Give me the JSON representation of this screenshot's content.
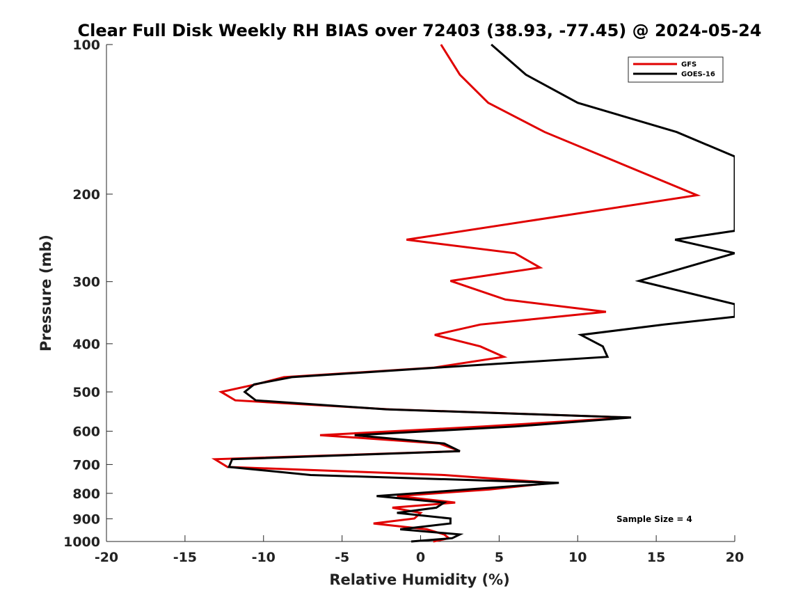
{
  "chart_data": {
    "type": "line",
    "title": "Clear Full Disk Weekly RH BIAS over 72403 (38.93, -77.45) @ 2024-05-24",
    "xlabel": "Relative Humidity (%)",
    "ylabel": "Pressure (mb)",
    "xlim": [
      -20,
      20
    ],
    "ylim": [
      100,
      1000
    ],
    "y_scale": "log",
    "y_reversed": true,
    "grid": false,
    "legend_position": "top-right",
    "x_ticks": [
      -20,
      -15,
      -10,
      -5,
      0,
      5,
      10,
      15,
      20
    ],
    "x_tick_labels": [
      "-20",
      "-15",
      "-10",
      "-5",
      "0",
      "5",
      "10",
      "15",
      "20"
    ],
    "y_ticks": [
      100,
      200,
      300,
      400,
      500,
      600,
      700,
      800,
      900,
      1000
    ],
    "y_tick_labels": [
      "100",
      "200",
      "300",
      "400",
      "500",
      "600",
      "700",
      "800",
      "900",
      "1000"
    ],
    "annotation": "Sample Size = 4",
    "series": [
      {
        "name": "GFS",
        "color": "#e00000",
        "points": [
          [
            1.3,
            100
          ],
          [
            2.5,
            115
          ],
          [
            4.3,
            131
          ],
          [
            7.9,
            150
          ],
          [
            17.6,
            201
          ],
          [
            -0.9,
            247
          ],
          [
            6.0,
            263
          ],
          [
            7.6,
            281
          ],
          [
            1.9,
            299
          ],
          [
            5.4,
            326
          ],
          [
            11.8,
            345
          ],
          [
            3.8,
            366
          ],
          [
            0.9,
            384
          ],
          [
            3.8,
            405
          ],
          [
            5.3,
            425
          ],
          [
            0.8,
            447
          ],
          [
            -8.7,
            467
          ],
          [
            -10.5,
            483
          ],
          [
            -12.7,
            500
          ],
          [
            -11.8,
            520
          ],
          [
            -2.0,
            542
          ],
          [
            13.3,
            563
          ],
          [
            4.0,
            587
          ],
          [
            -6.4,
            611
          ],
          [
            1.2,
            635
          ],
          [
            2.5,
            658
          ],
          [
            -13.1,
            683
          ],
          [
            -12.3,
            708
          ],
          [
            1.5,
            735
          ],
          [
            8.4,
            762
          ],
          [
            4.4,
            786
          ],
          [
            -1.5,
            810
          ],
          [
            2.2,
            835
          ],
          [
            -1.8,
            855
          ],
          [
            0.0,
            876
          ],
          [
            -0.4,
            899
          ],
          [
            -3.0,
            920
          ],
          [
            0.4,
            945
          ],
          [
            1.5,
            968
          ],
          [
            1.8,
            985
          ],
          [
            0.8,
            1000
          ]
        ]
      },
      {
        "name": "GOES-16",
        "color": "#000000",
        "points": [
          [
            4.5,
            100
          ],
          [
            6.7,
            115
          ],
          [
            10.0,
            131
          ],
          [
            16.3,
            150
          ],
          [
            20.0,
            168
          ],
          [
            20.0,
            237
          ],
          [
            16.2,
            247
          ],
          [
            20.0,
            263
          ],
          [
            13.9,
            299
          ],
          [
            20.0,
            333
          ],
          [
            20.0,
            353
          ],
          [
            15.5,
            366
          ],
          [
            10.2,
            384
          ],
          [
            11.6,
            405
          ],
          [
            11.9,
            425
          ],
          [
            1.0,
            447
          ],
          [
            -8.2,
            467
          ],
          [
            -10.6,
            483
          ],
          [
            -11.2,
            500
          ],
          [
            -10.5,
            520
          ],
          [
            -2.2,
            542
          ],
          [
            13.4,
            563
          ],
          [
            6.0,
            587
          ],
          [
            -4.2,
            611
          ],
          [
            1.5,
            635
          ],
          [
            2.5,
            658
          ],
          [
            -12.0,
            683
          ],
          [
            -12.2,
            708
          ],
          [
            -7.0,
            735
          ],
          [
            8.8,
            762
          ],
          [
            3.0,
            786
          ],
          [
            -2.8,
            810
          ],
          [
            1.5,
            835
          ],
          [
            1.0,
            855
          ],
          [
            -1.5,
            876
          ],
          [
            1.9,
            899
          ],
          [
            1.9,
            920
          ],
          [
            -1.3,
            945
          ],
          [
            2.5,
            968
          ],
          [
            2.0,
            985
          ],
          [
            -0.6,
            1000
          ]
        ]
      }
    ]
  }
}
